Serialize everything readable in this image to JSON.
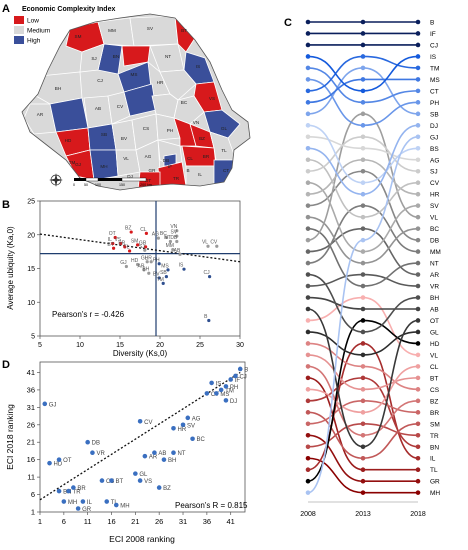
{
  "panels": {
    "A": {
      "letter": "A",
      "title": "Economic Complexity Index",
      "legend": [
        {
          "label": "Low",
          "color": "#d7191c"
        },
        {
          "label": "Medium",
          "color": "#d9d9d9"
        },
        {
          "label": "High",
          "color": "#3a4f9a"
        }
      ],
      "county_labels": [
        "SM",
        "MM",
        "SV",
        "BT",
        "SJ",
        "BN",
        "NT",
        "IS",
        "BH",
        "CJ",
        "MS",
        "HR",
        "BC",
        "VS",
        "AR",
        "AB",
        "CV",
        "VN",
        "HD",
        "SB",
        "BV",
        "GL",
        "TM",
        "CS",
        "VL",
        "AG",
        "PH",
        "BZ",
        "BR",
        "TL",
        "GJ",
        "MH",
        "DB",
        "IF",
        "B",
        "CT",
        "IL",
        "OT",
        "DJ",
        "TR",
        "GR",
        "CL"
      ],
      "scale_labels": [
        "0",
        "50",
        "100",
        "150",
        "200 km"
      ],
      "colors": {
        "Low": "#d7191c",
        "Medium": "#d9d9d9",
        "High": "#3a4f9a"
      }
    },
    "B": {
      "letter": "B",
      "annotation": "Pearson's r = -0.426"
    },
    "C": {
      "letter": "C"
    },
    "D": {
      "letter": "D",
      "annotation": "Pearson's R = 0.815"
    }
  },
  "chart_data": [
    {
      "panel": "B",
      "type": "scatter",
      "xlabel": "Diversity (Ks,0)",
      "ylabel": "Average ubiquity (Ka,0)",
      "xlim": [
        5,
        30
      ],
      "ylim": [
        5,
        25
      ],
      "xticks": [
        5,
        10,
        15,
        20,
        25,
        30
      ],
      "yticks": [
        5,
        10,
        15,
        20,
        25
      ],
      "reference_lines": {
        "x": 19.5,
        "y": 17.2
      },
      "trend": {
        "x": [
          5,
          30
        ],
        "y": [
          20.1,
          16.0
        ]
      },
      "points": [
        {
          "label": "OT",
          "x": 14.4,
          "y": 19.6,
          "group": "Low"
        },
        {
          "label": "BZ",
          "x": 16.4,
          "y": 20.4,
          "group": "Low"
        },
        {
          "label": "CL",
          "x": 18.3,
          "y": 20.2,
          "group": "Low"
        },
        {
          "label": "IL",
          "x": 14.1,
          "y": 18.7,
          "group": "Low"
        },
        {
          "label": "VS",
          "x": 15.1,
          "y": 18.7,
          "group": "Low"
        },
        {
          "label": "BT",
          "x": 14.2,
          "y": 18.0,
          "group": "Low"
        },
        {
          "label": "BR",
          "x": 15.6,
          "y": 18.2,
          "group": "Low"
        },
        {
          "label": "SM",
          "x": 17.2,
          "y": 18.5,
          "group": "Low"
        },
        {
          "label": "TL",
          "x": 16.2,
          "y": 17.6,
          "group": "Low"
        },
        {
          "label": "GR",
          "x": 18.2,
          "y": 18.2,
          "group": "Low"
        },
        {
          "label": "AG",
          "x": 19.8,
          "y": 19.5,
          "group": "Medium"
        },
        {
          "label": "BC",
          "x": 20.8,
          "y": 19.6,
          "group": "Medium"
        },
        {
          "label": "NT",
          "x": 21.3,
          "y": 19.0,
          "group": "Medium"
        },
        {
          "label": "VN",
          "x": 22.1,
          "y": 20.6,
          "group": "Medium"
        },
        {
          "label": "SV",
          "x": 22.1,
          "y": 19.8,
          "group": "Medium"
        },
        {
          "label": "DB",
          "x": 22.1,
          "y": 19.0,
          "group": "Medium"
        },
        {
          "label": "SJ",
          "x": 18.1,
          "y": 17.7,
          "group": "Medium"
        },
        {
          "label": "MM",
          "x": 21.6,
          "y": 17.8,
          "group": "Medium"
        },
        {
          "label": "AB",
          "x": 22.5,
          "y": 17.1,
          "group": "Medium"
        },
        {
          "label": "VL",
          "x": 26.0,
          "y": 18.3,
          "group": "Medium"
        },
        {
          "label": "CV",
          "x": 27.1,
          "y": 18.3,
          "group": "Medium"
        },
        {
          "label": "GJ",
          "x": 15.8,
          "y": 15.3,
          "group": "Medium"
        },
        {
          "label": "HD",
          "x": 17.2,
          "y": 15.6,
          "group": "Medium"
        },
        {
          "label": "GL",
          "x": 18.4,
          "y": 16.0,
          "group": "Medium"
        },
        {
          "label": "HR",
          "x": 18.9,
          "y": 16.0,
          "group": "Medium"
        },
        {
          "label": "AR",
          "x": 18.0,
          "y": 14.8,
          "group": "Medium"
        },
        {
          "label": "BH",
          "x": 18.6,
          "y": 14.3,
          "group": "Medium"
        },
        {
          "label": "PH",
          "x": 19.9,
          "y": 15.7,
          "group": "High"
        },
        {
          "label": "BV",
          "x": 19.9,
          "y": 13.6,
          "group": "High"
        },
        {
          "label": "SB",
          "x": 20.8,
          "y": 13.8,
          "group": "High"
        },
        {
          "label": "MS",
          "x": 21.0,
          "y": 14.8,
          "group": "High"
        },
        {
          "label": "IS",
          "x": 23.0,
          "y": 14.9,
          "group": "High"
        },
        {
          "label": "TM",
          "x": 20.4,
          "y": 12.8,
          "group": "High"
        },
        {
          "label": "CJ",
          "x": 26.2,
          "y": 13.8,
          "group": "High"
        },
        {
          "label": "B",
          "x": 26.1,
          "y": 7.3,
          "group": "High"
        }
      ]
    },
    {
      "panel": "C",
      "type": "line",
      "x": [
        2008,
        2013,
        2018
      ],
      "ranks": [
        1,
        2,
        3,
        4,
        5,
        6,
        7,
        8,
        9,
        10,
        11,
        12,
        13,
        14,
        15,
        16,
        17,
        18,
        19,
        20,
        21,
        22,
        23,
        24,
        25,
        26,
        27,
        28,
        29,
        30,
        31,
        32,
        33,
        34,
        35,
        36,
        37,
        38,
        39,
        40,
        41,
        42
      ],
      "counties_by_2018_rank": [
        "B",
        "IF",
        "CJ",
        "IS",
        "TM",
        "MS",
        "CT",
        "PH",
        "SB",
        "DJ",
        "GJ",
        "BS",
        "AG",
        "SJ",
        "CV",
        "HR",
        "SV",
        "VL",
        "BC",
        "DB",
        "MM",
        "NT",
        "AR",
        "VR",
        "BH",
        "AB",
        "OT",
        "GL",
        "HD",
        "VL",
        "CL",
        "BT",
        "CS",
        "BZ",
        "BR",
        "SM",
        "TR",
        "BN",
        "IL",
        "TL",
        "GR",
        "MH"
      ],
      "series": [
        {
          "name": "B",
          "values": [
            1,
            1,
            1
          ]
        },
        {
          "name": "IF",
          "values": [
            2,
            2,
            2
          ]
        },
        {
          "name": "CJ",
          "values": [
            3,
            3,
            3
          ]
        },
        {
          "name": "IS",
          "values": [
            4,
            7,
            4
          ]
        },
        {
          "name": "TM",
          "values": [
            7,
            4,
            5
          ]
        },
        {
          "name": "MS",
          "values": [
            8,
            6,
            6
          ]
        },
        {
          "name": "CT",
          "values": [
            5,
            8,
            7
          ]
        },
        {
          "name": "PH",
          "values": [
            6,
            10,
            8
          ]
        },
        {
          "name": "SB",
          "values": [
            9,
            5,
            9
          ]
        },
        {
          "name": "DJ",
          "values": [
            12,
            16,
            10
          ]
        },
        {
          "name": "GJ",
          "values": [
            42,
            20,
            11
          ]
        },
        {
          "name": "BS",
          "values": [
            10,
            15,
            12
          ]
        },
        {
          "name": "AG",
          "values": [
            11,
            12,
            13
          ]
        },
        {
          "name": "SJ",
          "values": [
            14,
            11,
            14
          ]
        },
        {
          "name": "CV",
          "values": [
            13,
            18,
            15
          ]
        },
        {
          "name": "HR",
          "values": [
            16,
            13,
            16
          ]
        },
        {
          "name": "SV",
          "values": [
            15,
            21,
            17
          ]
        },
        {
          "name": "VL",
          "values": [
            20,
            9,
            18
          ]
        },
        {
          "name": "BC",
          "values": [
            18,
            22,
            19
          ]
        },
        {
          "name": "DB",
          "values": [
            17,
            14,
            20
          ]
        },
        {
          "name": "MM",
          "values": [
            22,
            17,
            21
          ]
        },
        {
          "name": "NT",
          "values": [
            19,
            24,
            22
          ]
        },
        {
          "name": "AR",
          "values": [
            21,
            19,
            23
          ]
        },
        {
          "name": "VR",
          "values": [
            24,
            23,
            24
          ]
        },
        {
          "name": "BH",
          "values": [
            23,
            28,
            25
          ]
        },
        {
          "name": "AB",
          "values": [
            25,
            26,
            26
          ]
        },
        {
          "name": "OT",
          "values": [
            26,
            38,
            27
          ]
        },
        {
          "name": "GL",
          "values": [
            28,
            30,
            28
          ]
        },
        {
          "name": "HD",
          "values": [
            41,
            27,
            29
          ]
        },
        {
          "name": "VL",
          "values": [
            27,
            25,
            30
          ]
        },
        {
          "name": "CL",
          "values": [
            33,
            35,
            31
          ]
        },
        {
          "name": "BT",
          "values": [
            30,
            33,
            32
          ]
        },
        {
          "name": "CS",
          "values": [
            29,
            31,
            33
          ]
        },
        {
          "name": "BZ",
          "values": [
            31,
            37,
            34
          ]
        },
        {
          "name": "BR",
          "values": [
            36,
            34,
            35
          ]
        },
        {
          "name": "SM",
          "values": [
            35,
            39,
            36
          ]
        },
        {
          "name": "TR",
          "values": [
            38,
            36,
            37
          ]
        },
        {
          "name": "BN",
          "values": [
            34,
            32,
            38
          ]
        },
        {
          "name": "IL",
          "values": [
            40,
            29,
            39
          ]
        },
        {
          "name": "TL",
          "values": [
            32,
            40,
            40
          ]
        },
        {
          "name": "GR",
          "values": [
            37,
            41,
            41
          ]
        },
        {
          "name": "MH",
          "values": [
            39,
            42,
            42
          ]
        }
      ]
    },
    {
      "panel": "D",
      "type": "scatter",
      "xlabel": "ECI 2008 ranking",
      "ylabel": "ECI 2018 ranking",
      "xlim": [
        1,
        44
      ],
      "ylim": [
        1,
        44
      ],
      "xticks": [
        1,
        6,
        11,
        16,
        21,
        26,
        31,
        36,
        41
      ],
      "yticks": [
        1,
        6,
        11,
        16,
        21,
        26,
        31,
        36,
        41
      ],
      "trend": {
        "x": [
          1,
          43
        ],
        "y": [
          4.5,
          41.0
        ]
      },
      "points": [
        {
          "label": "GJ",
          "x": 2,
          "y": 32
        },
        {
          "label": "HD",
          "x": 3,
          "y": 15
        },
        {
          "label": "OT",
          "x": 5,
          "y": 16
        },
        {
          "label": "BN",
          "x": 5,
          "y": 7
        },
        {
          "label": "TR",
          "x": 7,
          "y": 7
        },
        {
          "label": "MH",
          "x": 6,
          "y": 4
        },
        {
          "label": "BR",
          "x": 8,
          "y": 8
        },
        {
          "label": "IL",
          "x": 10,
          "y": 4
        },
        {
          "label": "GR",
          "x": 9,
          "y": 2
        },
        {
          "label": "DB",
          "x": 11,
          "y": 21
        },
        {
          "label": "VR",
          "x": 12,
          "y": 18
        },
        {
          "label": "CS",
          "x": 14,
          "y": 10
        },
        {
          "label": "BT",
          "x": 16,
          "y": 10
        },
        {
          "label": "TL",
          "x": 15,
          "y": 4
        },
        {
          "label": "MH",
          "x": 17,
          "y": 3
        },
        {
          "label": "CV",
          "x": 22,
          "y": 27
        },
        {
          "label": "GL",
          "x": 21,
          "y": 12
        },
        {
          "label": "VS",
          "x": 22,
          "y": 10
        },
        {
          "label": "AR",
          "x": 23,
          "y": 17
        },
        {
          "label": "AB",
          "x": 25,
          "y": 18
        },
        {
          "label": "BH",
          "x": 27,
          "y": 16
        },
        {
          "label": "NT",
          "x": 29,
          "y": 18
        },
        {
          "label": "BZ",
          "x": 26,
          "y": 8
        },
        {
          "label": "HR",
          "x": 29,
          "y": 25
        },
        {
          "label": "SV",
          "x": 31,
          "y": 26
        },
        {
          "label": "BC",
          "x": 33,
          "y": 22
        },
        {
          "label": "AG",
          "x": 32,
          "y": 28
        },
        {
          "label": "CT",
          "x": 36,
          "y": 35
        },
        {
          "label": "IS",
          "x": 37,
          "y": 38
        },
        {
          "label": "MS",
          "x": 38,
          "y": 35
        },
        {
          "label": "TM",
          "x": 39,
          "y": 36
        },
        {
          "label": "DJ",
          "x": 40,
          "y": 33
        },
        {
          "label": "PH",
          "x": 40,
          "y": 37
        },
        {
          "label": "IF",
          "x": 41,
          "y": 39
        },
        {
          "label": "CJ",
          "x": 42,
          "y": 40
        },
        {
          "label": "B",
          "x": 43,
          "y": 42
        }
      ]
    }
  ]
}
